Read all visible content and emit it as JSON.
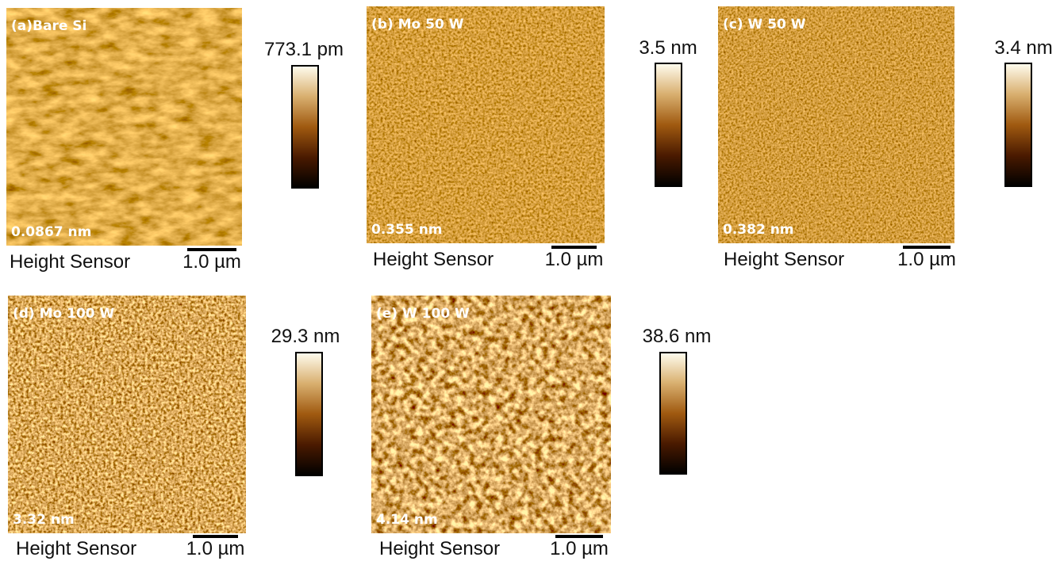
{
  "panels": [
    {
      "label": "(a)Bare Si",
      "roughness": "0.0867 nm",
      "colorbar_max": "773.1 pm",
      "channel": "Height Sensor",
      "scale_bar": "1.0 µm"
    },
    {
      "label": "(b) Mo 50 W",
      "roughness": "0.355 nm",
      "colorbar_max": "3.5 nm",
      "channel": "Height Sensor",
      "scale_bar": "1.0 µm"
    },
    {
      "label": "(c) W 50 W",
      "roughness": "0.382 nm",
      "colorbar_max": "3.4 nm",
      "channel": "Height Sensor",
      "scale_bar": "1.0 µm"
    },
    {
      "label": "(d) Mo 100 W",
      "roughness": "3.32 nm",
      "colorbar_max": "29.3 nm",
      "channel": "Height Sensor",
      "scale_bar": "1.0 µm"
    },
    {
      "label": "(e) W 100 W",
      "roughness": "4.14 nm",
      "colorbar_max": "38.6 nm",
      "channel": "Height Sensor",
      "scale_bar": "1.0 µm"
    }
  ]
}
